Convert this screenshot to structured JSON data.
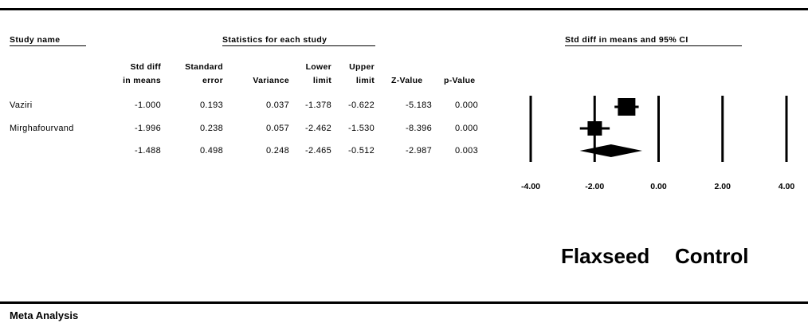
{
  "headers": {
    "study_name": "Study name",
    "statistics": "Statistics for each study",
    "forest": "Std diff in means and 95% CI"
  },
  "columns": {
    "smd_line1": "Std diff",
    "smd_line2": "in means",
    "se_line1": "Standard",
    "se_line2": "error",
    "variance": "Variance",
    "lower_line1": "Lower",
    "lower_line2": "limit",
    "upper_line1": "Upper",
    "upper_line2": "limit",
    "z": "Z-Value",
    "p": "p-Value"
  },
  "rows": [
    {
      "name": "Vaziri",
      "smd": "-1.000",
      "se": "0.193",
      "variance": "0.037",
      "lower": "-1.378",
      "upper": "-0.622",
      "z": "-5.183",
      "p": "0.000"
    },
    {
      "name": "Mirghafourvand",
      "smd": "-1.996",
      "se": "0.238",
      "variance": "0.057",
      "lower": "-2.462",
      "upper": "-1.530",
      "z": "-8.396",
      "p": "0.000"
    },
    {
      "name": "",
      "smd": "-1.488",
      "se": "0.498",
      "variance": "0.248",
      "lower": "-2.465",
      "upper": "-0.512",
      "z": "-2.987",
      "p": "0.003"
    }
  ],
  "favours": {
    "left": "Flaxseed",
    "right": "Control"
  },
  "footer": "Meta Analysis",
  "chart_data": {
    "type": "scatter",
    "subtype": "forest-plot",
    "title": "Std diff in means and 95% CI",
    "xlim": [
      -4,
      4
    ],
    "x_ticks": [
      -4,
      -2,
      0,
      2,
      4
    ],
    "x_tick_labels": [
      "-4.00",
      "-2.00",
      "0.00",
      "2.00",
      "4.00"
    ],
    "studies": [
      {
        "name": "Vaziri",
        "estimate": -1.0,
        "lower": -1.378,
        "upper": -0.622,
        "marker": "square"
      },
      {
        "name": "Mirghafourvand",
        "estimate": -1.996,
        "lower": -2.462,
        "upper": -1.53,
        "marker": "square"
      }
    ],
    "summary": {
      "estimate": -1.488,
      "lower": -2.465,
      "upper": -0.512,
      "marker": "diamond"
    },
    "favours_left": "Flaxseed",
    "favours_right": "Control"
  }
}
